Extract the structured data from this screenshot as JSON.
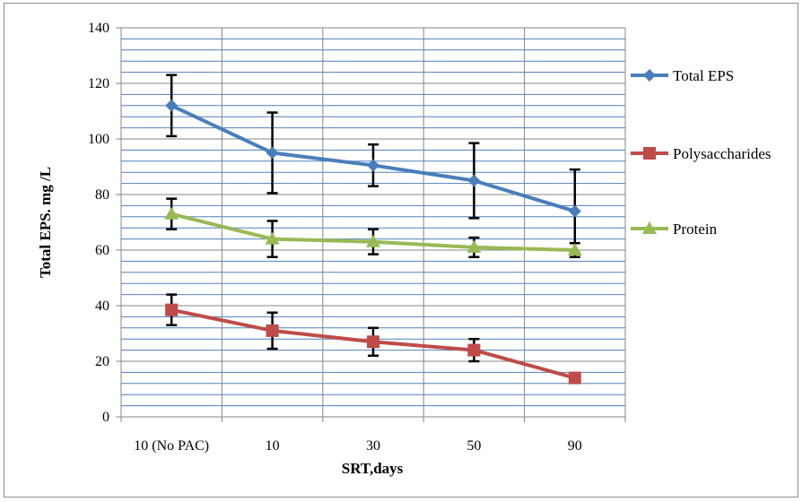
{
  "chart_data": {
    "type": "line",
    "xlabel": "SRT,days",
    "ylabel": "Total EPS. mg /L",
    "categories": [
      "10 (No PAC)",
      "10",
      "30",
      "50",
      "90"
    ],
    "ylim": [
      0,
      140
    ],
    "yticks": [
      0,
      20,
      40,
      60,
      80,
      100,
      120,
      140
    ],
    "grid": true,
    "legend_position": "right",
    "series": [
      {
        "name": "Total EPS",
        "color": "#4A7EBB",
        "marker": "diamond",
        "values": [
          112,
          95,
          90.5,
          85,
          74
        ],
        "error": [
          11,
          14.5,
          7.5,
          13.5,
          15
        ]
      },
      {
        "name": "Polysaccharides",
        "color": "#BE4B48",
        "marker": "square",
        "values": [
          38.5,
          31,
          27,
          24,
          14
        ],
        "error": [
          5.5,
          6.5,
          5,
          4,
          0
        ]
      },
      {
        "name": "Protein",
        "color": "#98B954",
        "marker": "triangle",
        "values": [
          73,
          64,
          63,
          61,
          60
        ],
        "error": [
          5.5,
          6.5,
          4.5,
          3.5,
          2.5
        ]
      }
    ]
  }
}
